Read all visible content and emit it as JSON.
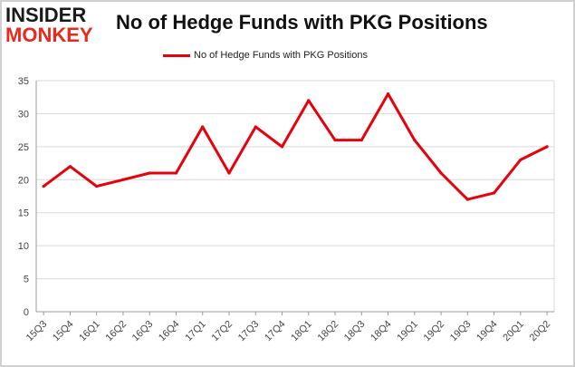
{
  "logo": {
    "line1": "INSIDER",
    "line2": "MONKEY"
  },
  "colors": {
    "series": "#e8000b",
    "grid": "#d9d9d9",
    "axis": "#999999"
  },
  "chart_data": {
    "type": "line",
    "title": "No of Hedge Funds with PKG Positions",
    "xlabel": "",
    "ylabel": "",
    "legend_position": "top",
    "grid": true,
    "ylim": [
      0,
      35
    ],
    "yticks": [
      0,
      5,
      10,
      15,
      20,
      25,
      30,
      35
    ],
    "categories": [
      "15Q3",
      "15Q4",
      "16Q1",
      "16Q2",
      "16Q3",
      "16Q4",
      "17Q1",
      "17Q2",
      "17Q3",
      "17Q4",
      "18Q1",
      "18Q2",
      "18Q3",
      "18Q4",
      "19Q1",
      "19Q2",
      "19Q3",
      "19Q4",
      "20Q1",
      "20Q2"
    ],
    "series": [
      {
        "name": "No of Hedge Funds with PKG Positions",
        "values": [
          19,
          22,
          19,
          20,
          21,
          21,
          28,
          21,
          28,
          25,
          32,
          26,
          26,
          33,
          26,
          21,
          17,
          18,
          23,
          25
        ]
      }
    ]
  }
}
